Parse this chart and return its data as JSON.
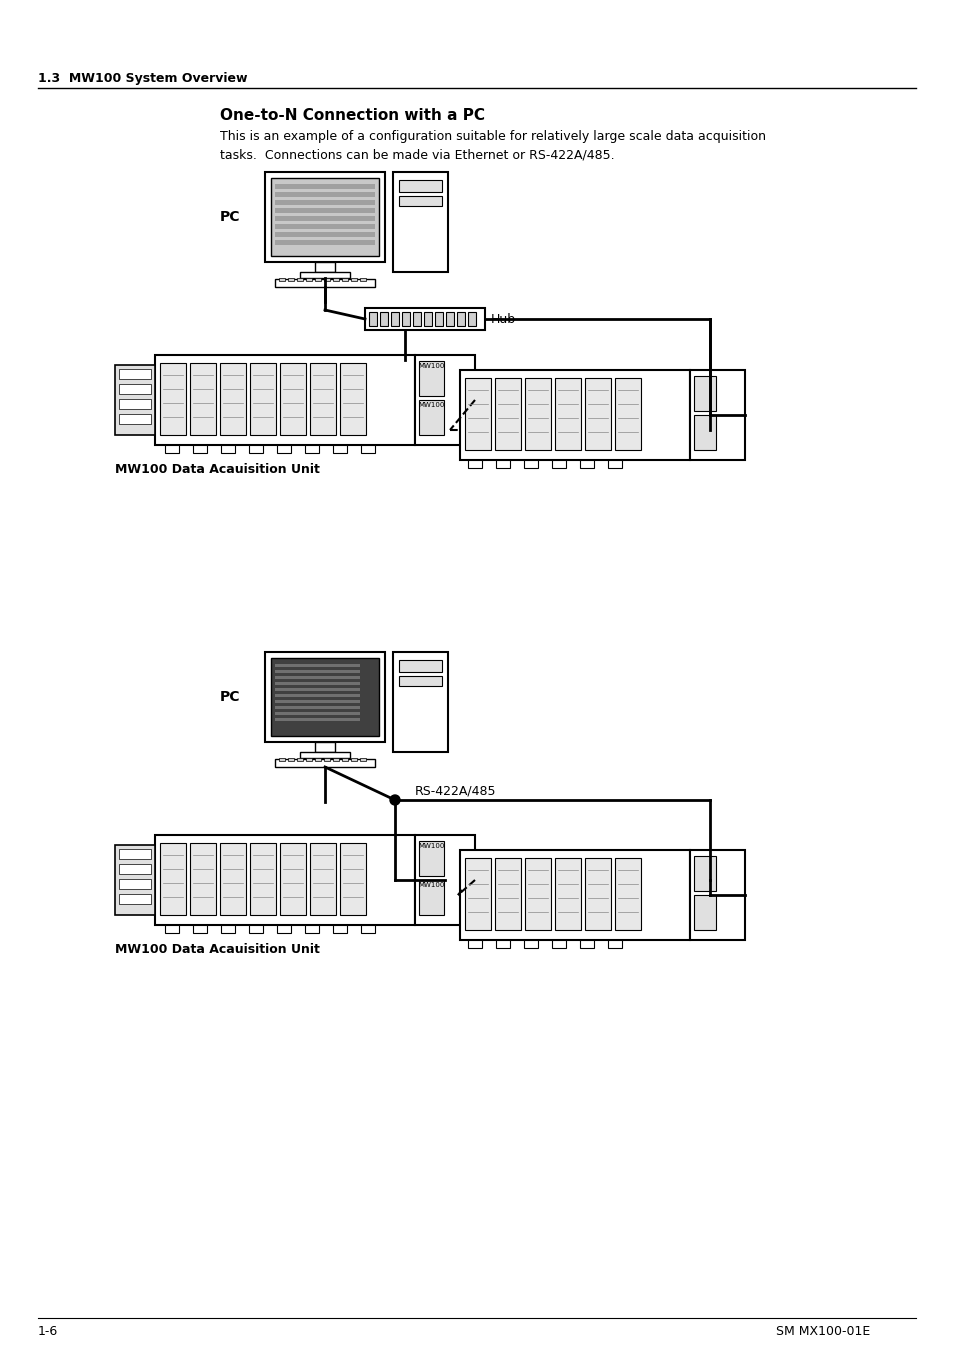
{
  "page_header": "1.3  MW100 System Overview",
  "section_title": "One-to-N Connection with a PC",
  "description_line1": "This is an example of a configuration suitable for relatively large scale data acquisition",
  "description_line2": "tasks.  Connections can be made via Ethernet or RS-422A/485.",
  "footer_left": "1-6",
  "footer_right": "SM MX100-01E",
  "label_pc1": "PC",
  "label_hub": "Hub",
  "label_mw100_unit1": "MW100 Data Acauisition Unit",
  "label_pc2": "PC",
  "label_rs422": "RS-422A/485",
  "label_mw100_unit2": "MW100 Data Acauisition Unit",
  "bg_color": "#ffffff",
  "line_color": "#000000",
  "text_color": "#000000"
}
